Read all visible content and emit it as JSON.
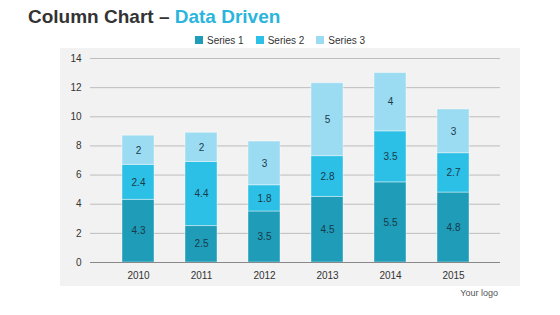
{
  "chart_data": {
    "type": "bar",
    "title": "Column Chart – Data Driven",
    "categories": [
      "2010",
      "2011",
      "2012",
      "2013",
      "2014",
      "2015"
    ],
    "series": [
      {
        "name": "Series 1",
        "color": "#1e9cb8",
        "values": [
          4.3,
          2.5,
          3.5,
          4.5,
          5.5,
          4.8
        ]
      },
      {
        "name": "Series 2",
        "color": "#2cc0e6",
        "values": [
          2.4,
          4.4,
          1.8,
          2.8,
          3.5,
          2.7
        ]
      },
      {
        "name": "Series 3",
        "color": "#9cdcf2",
        "values": [
          2,
          2,
          3,
          5,
          4,
          3
        ]
      }
    ],
    "ylim": [
      0,
      14
    ],
    "yticks": [
      0,
      2,
      4,
      6,
      8,
      10,
      12,
      14
    ],
    "grid": true,
    "stacked": true,
    "data_labels": true,
    "legend": "top",
    "annotations": [
      "Your logo"
    ]
  }
}
